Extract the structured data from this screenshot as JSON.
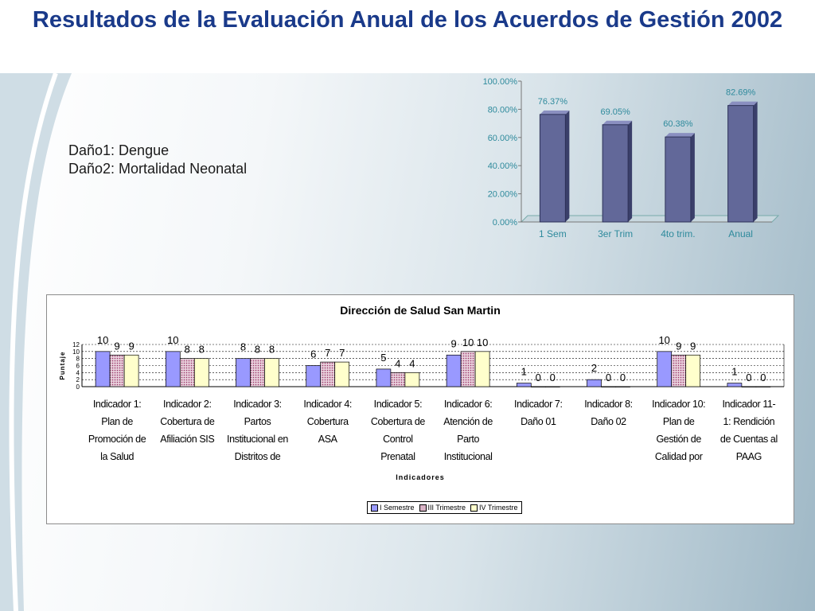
{
  "slide": {
    "title": "Resultados de la Evaluación Anual de los Acuerdos de Gestión 2002",
    "notes": [
      "Daño1: Dengue",
      "Daño2: Mortalidad Neonatal"
    ]
  },
  "colors": {
    "title": "#1a3a8a",
    "bar_main": "#626899",
    "label_teal": "#2e8a9c",
    "series1": "#9999ff",
    "series2": "#993366",
    "series3": "#ffffcc"
  },
  "chart_data": [
    {
      "type": "bar",
      "title": "",
      "categories": [
        "1 Sem",
        "3er Trim",
        "4to trim.",
        "Anual"
      ],
      "values": [
        76.37,
        69.05,
        60.38,
        82.69
      ],
      "value_labels": [
        "76.37%",
        "69.05%",
        "60.38%",
        "82.69%"
      ],
      "ylim": [
        0,
        100
      ],
      "yticks": [
        "0.00%",
        "20.00%",
        "40.00%",
        "60.00%",
        "80.00%",
        "100.00%"
      ],
      "xlabel": "",
      "ylabel": "",
      "grid": false,
      "legend": "none"
    },
    {
      "type": "bar",
      "title": "Dirección de Salud San Martin",
      "xlabel": "Indicadores",
      "ylabel": "Puntaje",
      "ylim": [
        0,
        12
      ],
      "yticks": [
        "0",
        "2",
        "4",
        "6",
        "8",
        "10",
        "12"
      ],
      "grid": true,
      "legend": "bottom",
      "categories": [
        [
          "Indicador 1:",
          "Plan de",
          "Promoción de",
          "la Salud"
        ],
        [
          "Indicador 2:",
          "Cobertura de",
          "Afiliación SIS"
        ],
        [
          "Indicador 3:",
          "Partos",
          "Institucional en",
          "Distritos de"
        ],
        [
          "Indicador 4:",
          "Cobertura",
          "ASA"
        ],
        [
          "Indicador 5:",
          "Cobertura de",
          "Control",
          "Prenatal"
        ],
        [
          "Indicador 6:",
          "Atención de",
          "Parto",
          "Institucional"
        ],
        [
          "Indicador 7:",
          "Daño 01"
        ],
        [
          "Indicador 8:",
          "Daño 02"
        ],
        [
          "Indicador 10:",
          "Plan de",
          "Gestión de",
          "Calidad por"
        ],
        [
          "Indicador 11-",
          "1: Rendición",
          "de Cuentas al",
          "PAAG"
        ]
      ],
      "series": [
        {
          "name": "I Semestre",
          "values": [
            10,
            10,
            8,
            6,
            5,
            9,
            1,
            2,
            10,
            1
          ]
        },
        {
          "name": "III Trimestre",
          "values": [
            9,
            8,
            8,
            7,
            4,
            10,
            0,
            0,
            9,
            0
          ]
        },
        {
          "name": "IV Trimestre",
          "values": [
            9,
            8,
            8,
            7,
            4,
            10,
            0,
            0,
            9,
            0
          ]
        }
      ]
    }
  ]
}
